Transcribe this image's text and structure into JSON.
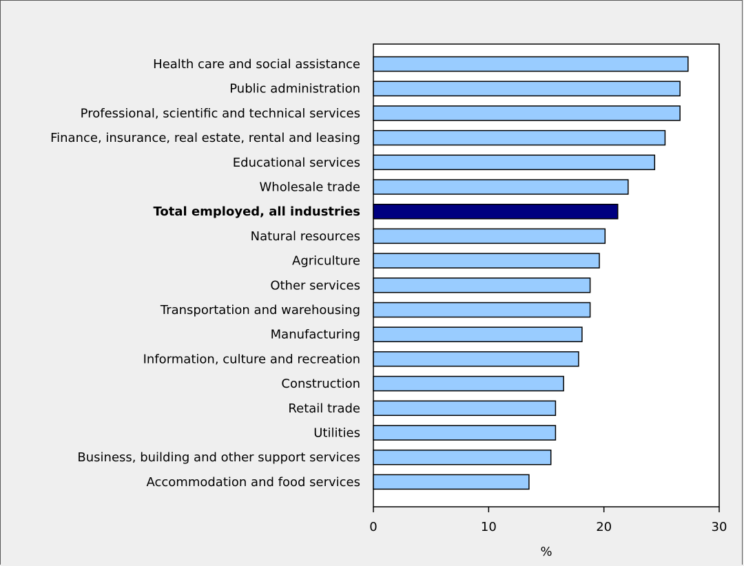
{
  "chart_data": {
    "type": "bar",
    "orientation": "horizontal",
    "title": "",
    "xlabel": "%",
    "ylabel": "",
    "xlim": [
      0,
      30
    ],
    "xticks": [
      0,
      10,
      20,
      30
    ],
    "grid": false,
    "colors": {
      "default": "#99ccff",
      "highlight": "#000080",
      "edge": "#000000",
      "plot_bg": "#ffffff",
      "page_bg": "#efefef"
    },
    "categories": [
      "Health care and social assistance",
      "Public administration",
      "Professional, scientific and technical services",
      "Finance, insurance, real estate, rental and leasing",
      "Educational services",
      "Wholesale trade",
      "Total employed, all industries",
      "Natural resources",
      "Agriculture",
      "Other services",
      "Transportation and warehousing",
      "Manufacturing",
      "Information, culture and recreation",
      "Construction",
      "Retail trade",
      "Utilities",
      "Business, building and other support services",
      "Accommodation and food services"
    ],
    "values": [
      27.3,
      26.6,
      26.6,
      25.3,
      24.4,
      22.1,
      21.2,
      20.1,
      19.6,
      18.8,
      18.8,
      18.1,
      17.8,
      16.5,
      15.8,
      15.8,
      15.4,
      13.5
    ],
    "highlight_index": 6
  }
}
